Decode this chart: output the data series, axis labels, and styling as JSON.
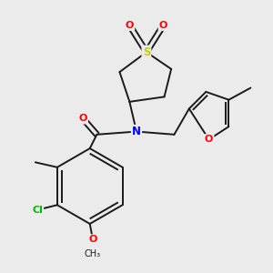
{
  "background_color": "#ebebeb",
  "bond_color": "#1a1a1a",
  "atom_colors": {
    "S": "#cccc00",
    "O": "#ff0000",
    "N": "#0000ff",
    "Cl": "#00bb00",
    "C": "#1a1a1a"
  },
  "figsize": [
    3.0,
    3.0
  ],
  "dpi": 100
}
